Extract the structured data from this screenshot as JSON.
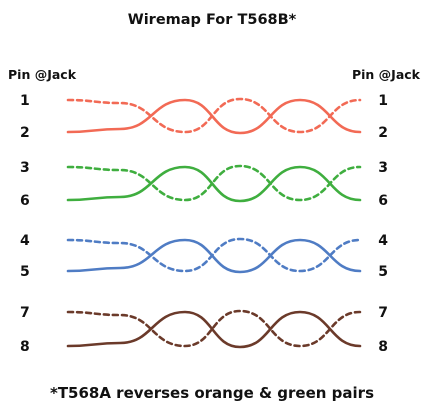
{
  "title": "Wiremap For T568B*",
  "left_header": "Pin @Jack",
  "right_header": "Pin @Jack",
  "footnote": "*T568A reverses orange & green pairs",
  "pairs": [
    {
      "name": "orange",
      "color": "#f26a55",
      "top_pin": "1",
      "bottom_pin": "2"
    },
    {
      "name": "green",
      "color": "#3fae3f",
      "top_pin": "3",
      "bottom_pin": "6"
    },
    {
      "name": "blue",
      "color": "#4f7cc4",
      "top_pin": "4",
      "bottom_pin": "5"
    },
    {
      "name": "brown",
      "color": "#6b3a2a",
      "top_pin": "7",
      "bottom_pin": "8"
    }
  ]
}
